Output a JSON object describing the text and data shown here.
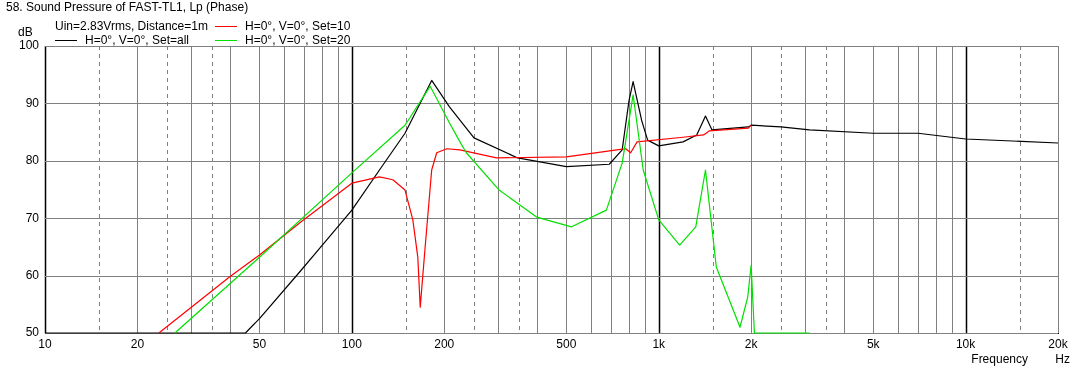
{
  "chart_data": {
    "type": "line",
    "title": "58. Sound Pressure of FAST-TL1, Lp (Phase)",
    "subtitle": "Uin=2.83Vrms, Distance=1m",
    "xlabel": "Frequency",
    "ylabel": "dB",
    "annotations": [
      "Hz"
    ],
    "log": "x",
    "grid": true,
    "legend": "top left",
    "marker": "none",
    "line_style": "solid",
    "xlim": [
      10,
      20000
    ],
    "ylim": [
      50,
      100
    ],
    "xticks": [
      10,
      {
        "value": 15,
        "label": null
      },
      20,
      {
        "value": 25,
        "label": null
      },
      {
        "value": 30,
        "label": null
      },
      {
        "value": 35,
        "label": null
      },
      {
        "value": 40,
        "label": null
      },
      50,
      {
        "value": 60,
        "label": null
      },
      {
        "value": 70,
        "label": null
      },
      {
        "value": 80,
        "label": null
      },
      {
        "value": 90,
        "label": null
      },
      100,
      {
        "value": 150,
        "label": null
      },
      200,
      {
        "value": 250,
        "label": null
      },
      {
        "value": 300,
        "label": null
      },
      {
        "value": 350,
        "label": null
      },
      {
        "value": 400,
        "label": null
      },
      500,
      {
        "value": 600,
        "label": null
      },
      {
        "value": 700,
        "label": null
      },
      {
        "value": 800,
        "label": null
      },
      {
        "value": 900,
        "label": null
      },
      {
        "value": 1000,
        "label": "1k"
      },
      {
        "value": 1500,
        "label": null
      },
      {
        "value": 2000,
        "label": "2k"
      },
      {
        "value": 2500,
        "label": null
      },
      {
        "value": 3000,
        "label": null
      },
      {
        "value": 3500,
        "label": null
      },
      {
        "value": 4000,
        "label": null
      },
      {
        "value": 5000,
        "label": "5k"
      },
      {
        "value": 6000,
        "label": null
      },
      {
        "value": 7000,
        "label": null
      },
      {
        "value": 8000,
        "label": null
      },
      {
        "value": 9000,
        "label": null
      },
      {
        "value": 10000,
        "label": "10k"
      },
      {
        "value": 15000,
        "label": null
      },
      {
        "value": 20000,
        "label": "20k"
      }
    ],
    "yticks": [
      50,
      60,
      70,
      80,
      90,
      100
    ],
    "series": [
      {
        "name": "H=0°, V=0°, Set=all",
        "color": "#000000",
        "x": [
          10,
          45,
          50,
          68,
          100,
          123,
          149,
          182,
          208,
          225,
          250,
          347,
          500,
          690,
          760,
          800,
          825,
          880,
          920,
          1000,
          1200,
          1330,
          1420,
          1490,
          1960,
          2000,
          2500,
          3100,
          5000,
          7000,
          10000,
          20000
        ],
        "values": [
          50,
          50,
          52.5,
          60.8,
          71.4,
          78.4,
          84.8,
          94,
          89.4,
          87.1,
          84,
          80.5,
          79,
          79.4,
          81.9,
          90.5,
          93.8,
          87,
          83.6,
          82.6,
          83.3,
          84.5,
          87.8,
          85.4,
          85.9,
          86.2,
          85.9,
          85.4,
          84.8,
          84.8,
          83.8,
          83.1
        ]
      },
      {
        "name": "H=0°, V=0°, Set=10",
        "color": "#ff0000",
        "x": [
          23.5,
          40,
          50,
          68,
          100,
          123,
          136,
          149,
          158,
          164,
          167,
          173,
          182,
          189,
          204,
          225,
          296,
          500,
          730,
          780,
          810,
          850,
          1200,
          1400,
          1460,
          1960,
          2000
        ],
        "values": [
          50,
          59.8,
          63.6,
          69.3,
          76.1,
          77.2,
          76.7,
          74.9,
          69.7,
          63.2,
          54.5,
          64.5,
          78.4,
          81.4,
          82.1,
          81.9,
          80.5,
          80.7,
          81.9,
          82.1,
          81.4,
          83.3,
          84.1,
          84.5,
          85.2,
          85.7,
          86.2
        ]
      },
      {
        "name": "H=0°, V=0°, Set=20",
        "color": "#00e000",
        "x": [
          26.5,
          50,
          100,
          149,
          180,
          208,
          225,
          236,
          302,
          400,
          520,
          675,
          760,
          825,
          890,
          1000,
          1170,
          1320,
          1420,
          1540,
          1840,
          1950,
          2000,
          2050,
          3100
        ],
        "values": [
          50,
          63.2,
          77.9,
          86.2,
          93,
          86.6,
          83.3,
          81.4,
          74.9,
          70.2,
          68.5,
          71.4,
          79.6,
          91.5,
          78.4,
          69.7,
          65.3,
          68.5,
          78.4,
          61.5,
          51,
          56.3,
          61.8,
          50,
          50
        ]
      }
    ]
  }
}
